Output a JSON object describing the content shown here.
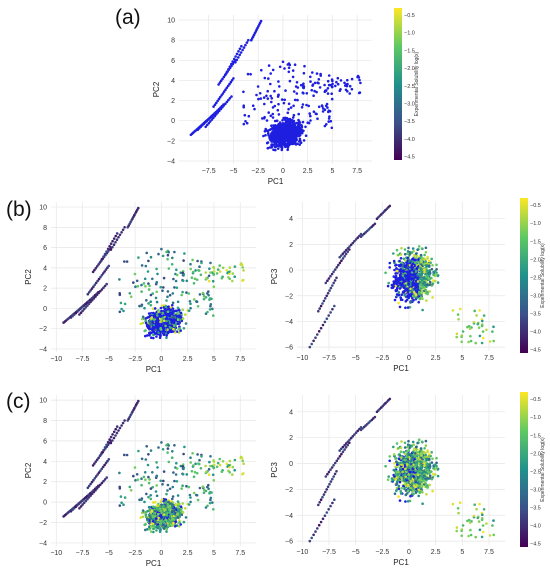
{
  "colorscale": [
    "#440154",
    "#3b528b",
    "#21918c",
    "#5ec962",
    "#fde725"
  ],
  "highlight_color": "#1f1fe0",
  "chart_data": [
    {
      "panel": "(a)",
      "type": "scatter",
      "x_axis": "PC1",
      "y_axis": "PC2",
      "xlabel": "PC1",
      "ylabel": "PC2",
      "xlim": [
        -10.5,
        9
      ],
      "ylim": [
        -4.3,
        10.5
      ],
      "xticks": [
        -7.5,
        -5,
        -2.5,
        0,
        2.5,
        5,
        7.5
      ],
      "yticks": [
        -4,
        -2,
        0,
        2,
        4,
        6,
        8,
        10
      ],
      "coloring": "uniform-blue",
      "colorbar": {
        "label": "Experimental Solubility log(x)",
        "range": [
          -4.6,
          -0.3
        ],
        "ticks": [
          -0.5,
          -1.0,
          -1.5,
          -2.0,
          -2.5,
          -3.0,
          -3.5,
          -4.0,
          -4.5
        ]
      }
    },
    {
      "panel": "(b)",
      "type": "scatter",
      "x_axis": "PC1",
      "y_axis": "PC2",
      "xlabel": "PC1",
      "ylabel": "PC2",
      "xlim": [
        -10.5,
        9
      ],
      "ylim": [
        -4.3,
        10.5
      ],
      "xticks": [
        -10,
        -7.5,
        -5,
        -2.5,
        0,
        2.5,
        5,
        7.5
      ],
      "yticks": [
        -4,
        -2,
        0,
        2,
        4,
        6,
        8,
        10
      ],
      "coloring": "solubility-blue-core"
    },
    {
      "panel": "(b)",
      "type": "scatter",
      "x_axis": "PC1",
      "y_axis": "PC3",
      "xlabel": "PC1",
      "ylabel": "PC3",
      "xlim": [
        -10.5,
        9
      ],
      "ylim": [
        -6.3,
        5.3
      ],
      "xticks": [
        -10,
        -7.5,
        -5,
        -2.5,
        0,
        2.5,
        5,
        7.5
      ],
      "yticks": [
        -6,
        -4,
        -2,
        0,
        2,
        4
      ],
      "coloring": "solubility-blue-core",
      "colorbar": {
        "label": "Experimental Solubility log(x)",
        "range": [
          -4.6,
          -0.3
        ],
        "ticks": [
          -0.5,
          -1.0,
          -1.5,
          -2.0,
          -2.5,
          -3.0,
          -3.5,
          -4.0,
          -4.5
        ]
      }
    },
    {
      "panel": "(c)",
      "type": "scatter",
      "x_axis": "PC1",
      "y_axis": "PC2",
      "xlabel": "PC1",
      "ylabel": "PC2",
      "xlim": [
        -10.5,
        9
      ],
      "ylim": [
        -4.3,
        10.5
      ],
      "xticks": [
        -10,
        -7.5,
        -5,
        -2.5,
        0,
        2.5,
        5,
        7.5
      ],
      "yticks": [
        -4,
        -2,
        0,
        2,
        4,
        6,
        8,
        10
      ],
      "coloring": "solubility-small-blue"
    },
    {
      "panel": "(c)",
      "type": "scatter",
      "x_axis": "PC1",
      "y_axis": "PC3",
      "xlabel": "PC1",
      "ylabel": "PC3",
      "xlim": [
        -10.5,
        9
      ],
      "ylim": [
        -6.3,
        5.3
      ],
      "xticks": [
        -10,
        -7.5,
        -5,
        -2.5,
        0,
        2.5,
        5,
        7.5
      ],
      "yticks": [
        -6,
        -4,
        -2,
        0,
        2,
        4
      ],
      "coloring": "solubility-small-blue",
      "colorbar": {
        "label": "Experimental Solubility log(x)",
        "range": [
          -4.6,
          -0.3
        ],
        "ticks": [
          -0.5,
          -1.0,
          -1.5,
          -2.0,
          -2.5,
          -3.0,
          -3.5,
          -4.0,
          -4.5
        ]
      }
    }
  ]
}
